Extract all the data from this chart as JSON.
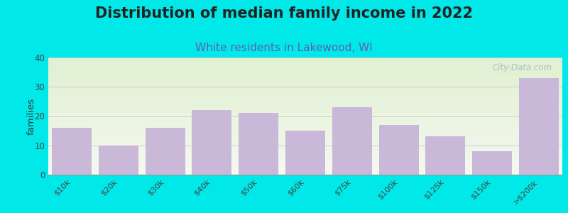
{
  "title": "Distribution of median family income in 2022",
  "subtitle": "White residents in Lakewood, WI",
  "ylabel": "families",
  "categories": [
    "$10k",
    "$20k",
    "$30k",
    "$40k",
    "$50k",
    "$60k",
    "$75k",
    "$100k",
    "$125k",
    "$150k",
    ">$200k"
  ],
  "values": [
    16,
    10,
    16,
    22,
    21,
    15,
    23,
    17,
    13,
    8,
    33
  ],
  "bar_color": "#c9b8d8",
  "background_outer": "#00e8e8",
  "background_plot_top": "#dff0d0",
  "background_plot_bottom": "#f5f8f0",
  "ylim": [
    0,
    40
  ],
  "yticks": [
    0,
    10,
    20,
    30,
    40
  ],
  "title_fontsize": 15,
  "subtitle_fontsize": 11,
  "title_color": "#222222",
  "subtitle_color": "#6060b0",
  "watermark_text": "City-Data.com",
  "watermark_color": "#a8b4c0",
  "grid_color": "#cccccc"
}
